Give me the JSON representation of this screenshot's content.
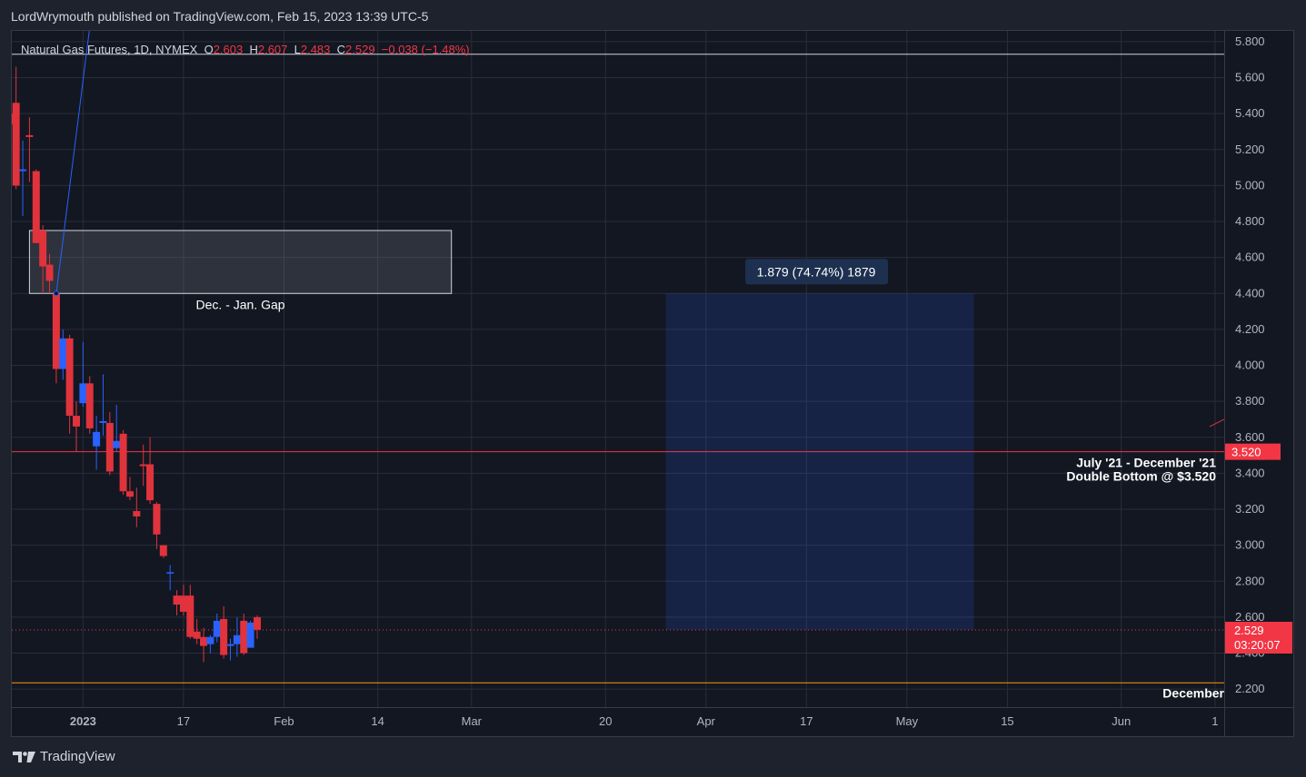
{
  "header": {
    "published_text": "LordWrymouth published on TradingView.com, Feb 15, 2023 13:39 UTC-5"
  },
  "footer": {
    "brand": "TradingView",
    "logo_icon": "tradingview-logo-icon"
  },
  "colors": {
    "background": "#131722",
    "up": "#2962ff",
    "down": "#e0333c",
    "grid": "#2a2e39",
    "axis_text": "#b2b5be",
    "price_tag": "#f23645"
  },
  "chart_data": {
    "type": "candlestick",
    "symbol_label": "Natural Gas Futures, 1D, NYMEX",
    "ohlc_legend": {
      "o_label": "O",
      "o_value": "2.603",
      "h_label": "H",
      "h_value": "2.607",
      "l_label": "L",
      "l_value": "2.483",
      "c_label": "C",
      "c_value": "2.529",
      "change": "−0.038 (−1.48%)"
    },
    "y_axis": {
      "min": 2.1,
      "max": 5.86,
      "ticks": [
        "5.800",
        "5.600",
        "5.400",
        "5.200",
        "5.000",
        "4.800",
        "4.600",
        "4.400",
        "4.200",
        "4.000",
        "3.800",
        "3.600",
        "3.400",
        "3.200",
        "3.000",
        "2.800",
        "2.600",
        "2.400",
        "2.200"
      ]
    },
    "x_axis": {
      "ticks": [
        {
          "label": "2023",
          "bold": true,
          "day": 1
        },
        {
          "label": "17",
          "day": 16
        },
        {
          "label": "Feb",
          "day": 31
        },
        {
          "label": "14",
          "day": 45
        },
        {
          "label": "Mar",
          "day": 59
        },
        {
          "label": "20",
          "day": 79
        },
        {
          "label": "Apr",
          "day": 94
        },
        {
          "label": "17",
          "day": 109
        },
        {
          "label": "May",
          "day": 124
        },
        {
          "label": "15",
          "day": 139
        },
        {
          "label": "Jun",
          "day": 156
        },
        {
          "label": "1",
          "day": 170
        }
      ]
    },
    "candles": [
      {
        "d": -10,
        "o": 5.4,
        "h": 5.6,
        "l": 5.28,
        "c": 5.34
      },
      {
        "d": -9,
        "o": 5.46,
        "h": 5.66,
        "l": 4.98,
        "c": 5.0
      },
      {
        "d": -8,
        "o": 5.08,
        "h": 5.25,
        "l": 4.83,
        "c": 5.09
      },
      {
        "d": -7,
        "o": 5.28,
        "h": 5.38,
        "l": 5.02,
        "c": 5.27
      },
      {
        "d": -6,
        "o": 5.08,
        "h": 5.09,
        "l": 4.68,
        "c": 4.68
      },
      {
        "d": -5,
        "o": 4.75,
        "h": 4.78,
        "l": 4.4,
        "c": 4.55
      },
      {
        "d": -4,
        "o": 4.56,
        "h": 4.62,
        "l": 4.4,
        "c": 4.47
      },
      {
        "d": -3,
        "o": 4.4,
        "h": 4.41,
        "l": 3.9,
        "c": 3.98
      },
      {
        "d": -2,
        "o": 3.98,
        "h": 4.2,
        "l": 3.92,
        "c": 4.15
      },
      {
        "d": -1,
        "o": 4.15,
        "h": 4.17,
        "l": 3.62,
        "c": 3.72
      },
      {
        "d": 0,
        "o": 3.72,
        "h": 3.8,
        "l": 3.52,
        "c": 3.66
      },
      {
        "d": 1,
        "o": 3.79,
        "h": 4.13,
        "l": 3.77,
        "c": 3.9
      },
      {
        "d": 2,
        "o": 3.9,
        "h": 3.94,
        "l": 3.62,
        "c": 3.65
      },
      {
        "d": 3,
        "o": 3.55,
        "h": 3.72,
        "l": 3.42,
        "c": 3.63
      },
      {
        "d": 4,
        "o": 3.68,
        "h": 3.95,
        "l": 3.61,
        "c": 3.69
      },
      {
        "d": 5,
        "o": 3.68,
        "h": 3.74,
        "l": 3.39,
        "c": 3.41
      },
      {
        "d": 6,
        "o": 3.54,
        "h": 3.78,
        "l": 3.52,
        "c": 3.58
      },
      {
        "d": 7,
        "o": 3.62,
        "h": 3.64,
        "l": 3.28,
        "c": 3.3
      },
      {
        "d": 8,
        "o": 3.3,
        "h": 3.38,
        "l": 3.25,
        "c": 3.27
      },
      {
        "d": 9,
        "o": 3.19,
        "h": 3.32,
        "l": 3.1,
        "c": 3.16
      },
      {
        "d": 10,
        "o": 3.45,
        "h": 3.56,
        "l": 3.33,
        "c": 3.44
      },
      {
        "d": 11,
        "o": 3.45,
        "h": 3.6,
        "l": 3.23,
        "c": 3.25
      },
      {
        "d": 12,
        "o": 3.23,
        "h": 3.24,
        "l": 2.98,
        "c": 3.06
      },
      {
        "d": 13,
        "o": 3.0,
        "h": 3.0,
        "l": 2.93,
        "c": 2.94
      },
      {
        "d": 14,
        "o": 2.85,
        "h": 2.89,
        "l": 2.75,
        "c": 2.85
      },
      {
        "d": 15,
        "o": 2.72,
        "h": 2.75,
        "l": 2.61,
        "c": 2.67
      },
      {
        "d": 16,
        "o": 2.72,
        "h": 2.78,
        "l": 2.61,
        "c": 2.63
      },
      {
        "d": 17,
        "o": 2.72,
        "h": 2.78,
        "l": 2.48,
        "c": 2.49
      },
      {
        "d": 18,
        "o": 2.52,
        "h": 2.59,
        "l": 2.45,
        "c": 2.48
      },
      {
        "d": 19,
        "o": 2.49,
        "h": 2.54,
        "l": 2.35,
        "c": 2.44
      },
      {
        "d": 20,
        "o": 2.45,
        "h": 2.5,
        "l": 2.4,
        "c": 2.49
      },
      {
        "d": 21,
        "o": 2.49,
        "h": 2.62,
        "l": 2.46,
        "c": 2.58
      },
      {
        "d": 22,
        "o": 2.59,
        "h": 2.66,
        "l": 2.37,
        "c": 2.39
      },
      {
        "d": 23,
        "o": 2.44,
        "h": 2.48,
        "l": 2.36,
        "c": 2.45
      },
      {
        "d": 24,
        "o": 2.45,
        "h": 2.6,
        "l": 2.38,
        "c": 2.5
      },
      {
        "d": 25,
        "o": 2.58,
        "h": 2.62,
        "l": 2.39,
        "c": 2.4
      },
      {
        "d": 26,
        "o": 2.43,
        "h": 2.58,
        "l": 2.43,
        "c": 2.57
      },
      {
        "d": 27,
        "o": 2.6,
        "h": 2.61,
        "l": 2.48,
        "c": 2.53
      }
    ],
    "annotations": {
      "gap_label": "Dec. - Jan. Gap",
      "gap_box": {
        "d0": -7,
        "d1": 56,
        "p0": 4.4,
        "p1": 4.75
      },
      "measure_label": "1.879 (74.74%) 1879",
      "measure_box": {
        "d0": 88,
        "d1": 134,
        "p0": 2.529,
        "p1": 4.4
      },
      "double_bottom_line1": "July '21 - December '21",
      "double_bottom_line2": "Double Bottom @ $3.520",
      "double_bottom_level": 3.52,
      "double_bottom_tag": "3.520",
      "top_line_level": 5.73,
      "bottom_line_level": 2.235,
      "bottom_line_label": "December",
      "last_price_tag": "2.529",
      "countdown_tag": "03:20:07",
      "last_price": 2.529,
      "trend_line": {
        "d0": -3,
        "p0": 4.4,
        "d1": 2,
        "p1": 5.88
      }
    }
  }
}
